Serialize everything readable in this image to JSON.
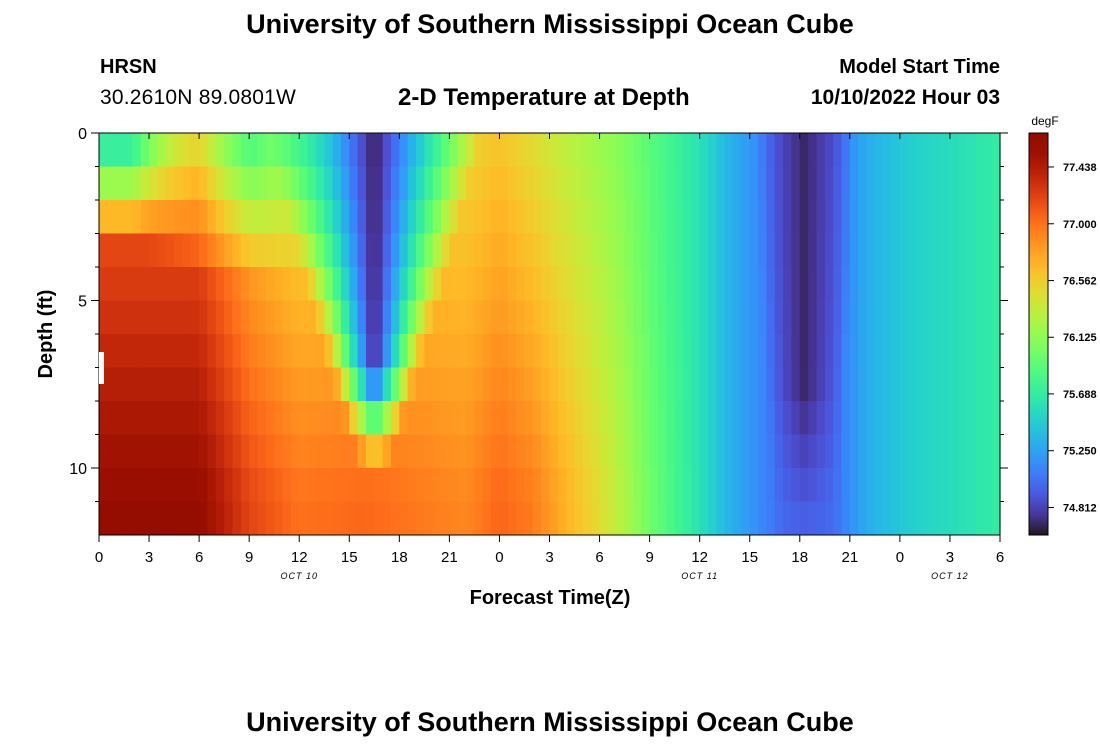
{
  "header": {
    "title": "University of Southern Mississippi Ocean Cube",
    "station": "HRSN",
    "coords": "30.2610N  89.0801W",
    "subtitle": "2-D Temperature at Depth",
    "model_label": "Model Start Time",
    "model_time": "10/10/2022 Hour 03"
  },
  "footer": {
    "title": "University of Southern Mississippi Ocean Cube"
  },
  "chart_data": {
    "type": "heatmap",
    "title": "2-D Temperature at Depth",
    "xlabel": "Forecast Time(Z)",
    "ylabel": "Depth (ft)",
    "x_hours_range": [
      0,
      54
    ],
    "x_tick_hours": [
      0,
      3,
      6,
      9,
      12,
      15,
      18,
      21,
      24,
      27,
      30,
      33,
      36,
      39,
      42,
      45,
      48,
      51,
      54
    ],
    "x_tick_labels": [
      "0",
      "3",
      "6",
      "9",
      "12",
      "15",
      "18",
      "21",
      "0",
      "3",
      "6",
      "9",
      "12",
      "15",
      "18",
      "21",
      "0",
      "3",
      "6"
    ],
    "date_labels": [
      {
        "hour": 12,
        "text": "OCT 10"
      },
      {
        "hour": 36,
        "text": "OCT 11"
      },
      {
        "hour": 51,
        "text": "OCT 12"
      }
    ],
    "ylim": [
      0,
      12
    ],
    "y_ticks": [
      0,
      5,
      10
    ],
    "y_minor_ticks": [
      1,
      2,
      3,
      4,
      6,
      7,
      8,
      9,
      11
    ],
    "depth_levels_ft": [
      0,
      1,
      2,
      3,
      4,
      5,
      6,
      7,
      8,
      9,
      10,
      11
    ],
    "time_step_hours": 0.5,
    "colorbar": {
      "unit": "degF",
      "vmin": 74.6,
      "vmax": 77.7,
      "tick_values": [
        74.812,
        75.25,
        75.688,
        76.125,
        76.562,
        77.0,
        77.438
      ],
      "tick_labels": [
        "74.812",
        "75.250",
        "75.688",
        "76.125",
        "76.562",
        "77.000",
        "77.438"
      ],
      "colormap": "turbo"
    },
    "field_model": {
      "description": "Approximate temperature field (degF) read from the figure: warm layer near 77.6 deg F early, cold trough near 74.7 deg F around hour 16-17 and again around hour 42, near 75.6-75.9 deg F by the end.",
      "deep_warm_max": 77.6,
      "surface_start": 75.5,
      "trough1_min": 74.65,
      "trough2_min": 74.68,
      "end_value": 75.6
    }
  }
}
